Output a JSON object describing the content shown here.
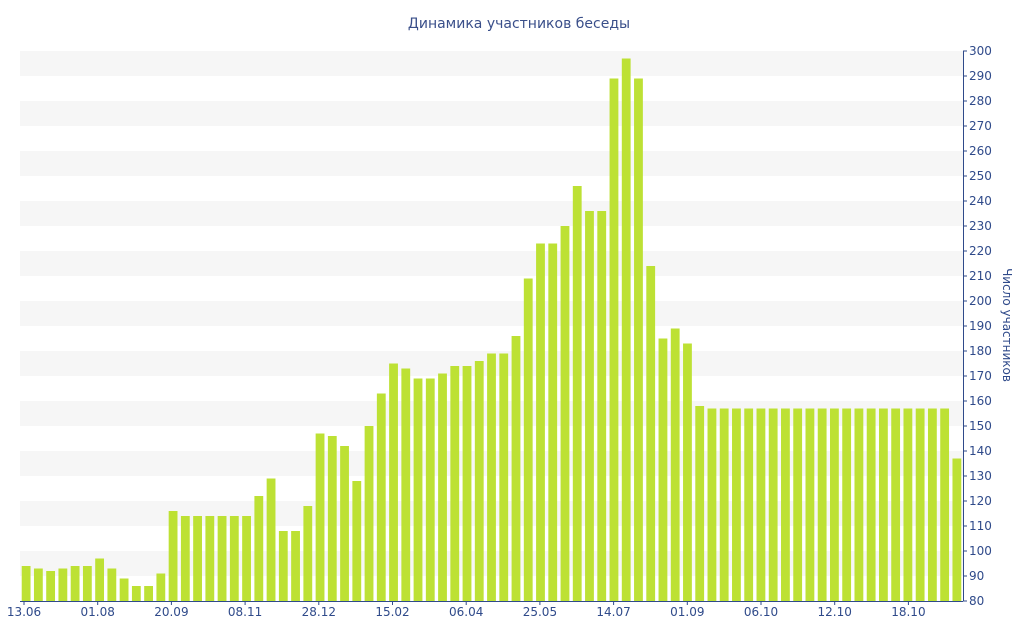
{
  "chart_data": {
    "type": "bar",
    "title": "Динамика участников беседы",
    "ylabel": "Число участников",
    "ylim": [
      80,
      300
    ],
    "yticks": [
      80,
      90,
      100,
      110,
      120,
      130,
      140,
      150,
      160,
      170,
      180,
      190,
      200,
      210,
      220,
      230,
      240,
      250,
      260,
      270,
      280,
      290,
      300
    ],
    "xticks": [
      "13.06",
      "01.08",
      "20.09",
      "08.11",
      "28.12",
      "15.02",
      "06.04",
      "25.05",
      "14.07",
      "01.09",
      "06.10",
      "12.10",
      "18.10"
    ],
    "bar_color": "#bde134",
    "band_color": "#f6f6f6",
    "values": [
      94,
      93,
      92,
      93,
      94,
      94,
      97,
      93,
      89,
      86,
      86,
      91,
      116,
      114,
      114,
      114,
      114,
      114,
      114,
      122,
      129,
      108,
      108,
      118,
      147,
      146,
      142,
      128,
      150,
      163,
      175,
      173,
      169,
      169,
      171,
      174,
      174,
      176,
      179,
      179,
      186,
      209,
      223,
      223,
      230,
      246,
      236,
      236,
      289,
      297,
      289,
      214,
      185,
      189,
      183,
      158,
      157,
      157,
      157,
      157,
      157,
      157,
      157,
      157,
      157,
      157,
      157,
      157,
      157,
      157,
      157,
      157,
      157,
      157,
      157,
      157,
      137
    ]
  }
}
